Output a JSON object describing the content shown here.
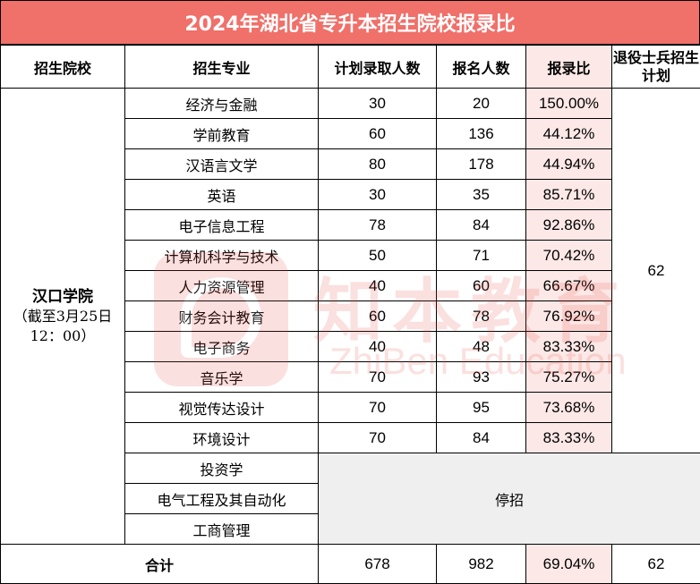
{
  "title": "2024年湖北省专升本招生院校报录比",
  "headers": {
    "school": "招生院校",
    "major": "招生专业",
    "plan": "计划录取人数",
    "applicants": "报名人数",
    "ratio": "报录比",
    "veteran": "退役士兵招生计划"
  },
  "school": {
    "name": "汉口学院",
    "note": "（截至3月25日12：00）"
  },
  "rows": [
    {
      "major": "经济与金融",
      "plan": "30",
      "applicants": "20",
      "ratio": "150.00%"
    },
    {
      "major": "学前教育",
      "plan": "60",
      "applicants": "136",
      "ratio": "44.12%"
    },
    {
      "major": "汉语言文学",
      "plan": "80",
      "applicants": "178",
      "ratio": "44.94%"
    },
    {
      "major": "英语",
      "plan": "30",
      "applicants": "35",
      "ratio": "85.71%"
    },
    {
      "major": "电子信息工程",
      "plan": "78",
      "applicants": "84",
      "ratio": "92.86%"
    },
    {
      "major": "计算机科学与技术",
      "plan": "50",
      "applicants": "71",
      "ratio": "70.42%"
    },
    {
      "major": "人力资源管理",
      "plan": "40",
      "applicants": "60",
      "ratio": "66.67%"
    },
    {
      "major": "财务会计教育",
      "plan": "60",
      "applicants": "78",
      "ratio": "76.92%"
    },
    {
      "major": "电子商务",
      "plan": "40",
      "applicants": "48",
      "ratio": "83.33%"
    },
    {
      "major": "音乐学",
      "plan": "70",
      "applicants": "93",
      "ratio": "75.27%"
    },
    {
      "major": "视觉传达设计",
      "plan": "70",
      "applicants": "95",
      "ratio": "73.68%"
    },
    {
      "major": "环境设计",
      "plan": "70",
      "applicants": "84",
      "ratio": "83.33%"
    }
  ],
  "veteran_plan": "62",
  "suspended": {
    "majors": [
      "投资学",
      "电气工程及其自动化",
      "工商管理"
    ],
    "label": "停招"
  },
  "total": {
    "label": "合计",
    "plan": "678",
    "applicants": "982",
    "ratio": "69.04%",
    "veteran": "62"
  },
  "watermark": {
    "text_cn": "知本教育",
    "text_en": "ZhiBen Education"
  },
  "colors": {
    "title_bg": "#f0706a",
    "ratio_bg": "#fce8e6",
    "suspended_bg": "#efefef",
    "watermark": "#e5463d"
  }
}
